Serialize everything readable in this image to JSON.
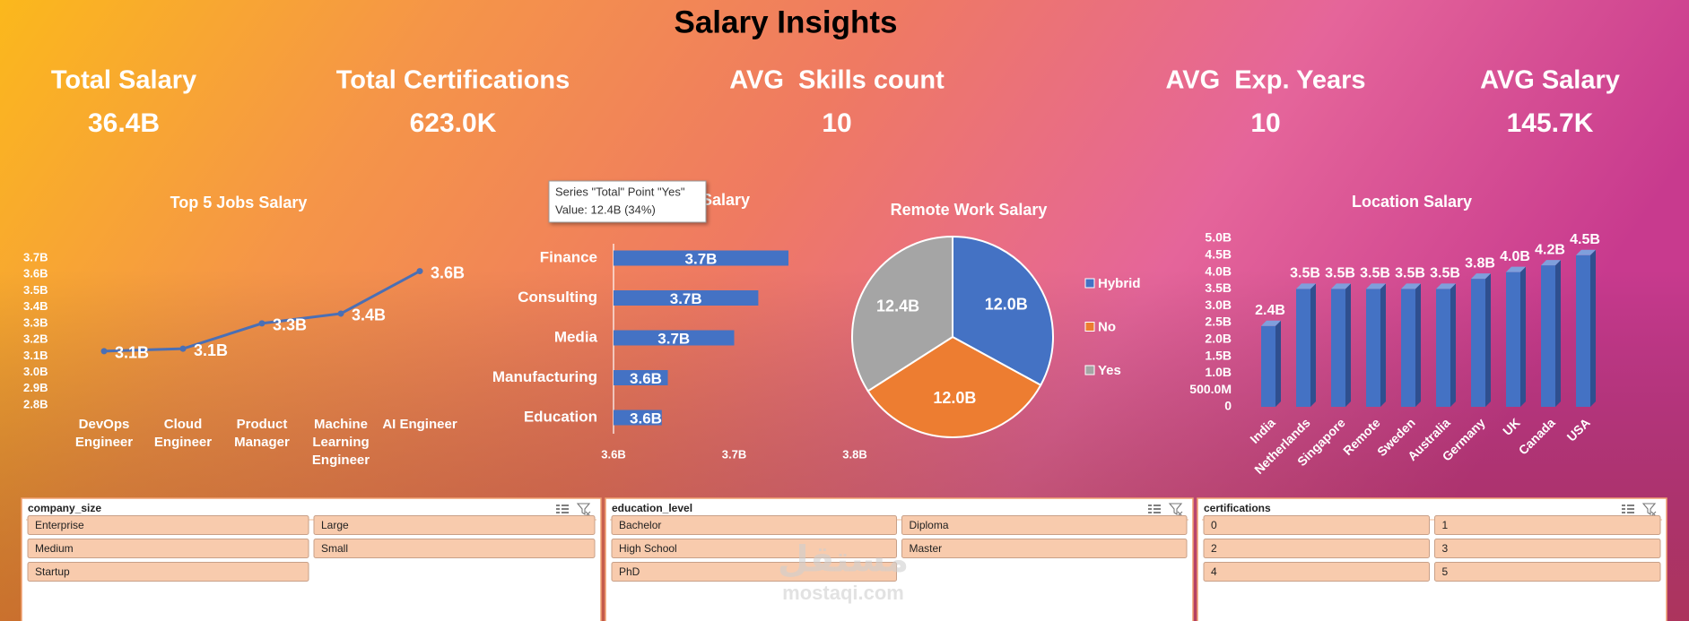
{
  "title": "Salary Insights",
  "kpis": [
    {
      "label": "Total Salary",
      "value": "36.4B"
    },
    {
      "label": "Total Certifications",
      "value": "623.0K"
    },
    {
      "label": "AVG  Skills count",
      "value": "10"
    },
    {
      "label": "AVG  Exp. Years",
      "value": "10"
    },
    {
      "label": "AVG Salary",
      "value": "145.7K"
    }
  ],
  "chart_data": [
    {
      "type": "line",
      "title": "Top 5 Jobs Salary",
      "categories": [
        "DevOps Engineer",
        "Cloud Engineer",
        "Product Manager",
        "Machine Learning Engineer",
        "AI Engineer"
      ],
      "values": [
        3130000000,
        3145000000,
        3300000000,
        3360000000,
        3620000000
      ],
      "value_labels": [
        "3.1B",
        "3.1B",
        "3.3B",
        "3.4B",
        "3.6B"
      ],
      "color": "#4a6fb5",
      "ylim": [
        2800000000,
        3700000000
      ],
      "yticks": [
        {
          "value": 3700000000,
          "label": "3.7B"
        },
        {
          "value": 3600000000,
          "label": "3.6B"
        },
        {
          "value": 3500000000,
          "label": "3.5B"
        },
        {
          "value": 3400000000,
          "label": "3.4B"
        },
        {
          "value": 3300000000,
          "label": "3.3B"
        },
        {
          "value": 3200000000,
          "label": "3.2B"
        },
        {
          "value": 3100000000,
          "label": "3.1B"
        },
        {
          "value": 3000000000,
          "label": "3.0B"
        },
        {
          "value": 2900000000,
          "label": "2.9B"
        },
        {
          "value": 2800000000,
          "label": "2.8B"
        }
      ]
    },
    {
      "type": "hbar",
      "title": "Industry Salary",
      "categories": [
        "Finance",
        "Consulting",
        "Media",
        "Manufacturing",
        "Education"
      ],
      "values": [
        3745000000,
        3720000000,
        3700000000,
        3645000000,
        3640000000
      ],
      "value_labels": [
        "3.7B",
        "3.7B",
        "3.7B",
        "3.6B",
        "3.6B"
      ],
      "color": "#4472c4",
      "xlim": [
        3600000000,
        3800000000
      ],
      "xticks": [
        {
          "value": 3600000000,
          "label": "3.6B"
        },
        {
          "value": 3700000000,
          "label": "3.7B"
        },
        {
          "value": 3800000000,
          "label": "3.8B"
        }
      ]
    },
    {
      "type": "pie",
      "title": "Remote Work Salary",
      "categories": [
        "Hybrid",
        "No",
        "Yes"
      ],
      "values": [
        12000000000,
        12000000000,
        12400000000
      ],
      "value_labels": [
        "12.0B",
        "12.0B",
        "12.4B"
      ],
      "colors": [
        "#4472c4",
        "#ed7d31",
        "#a5a5a5"
      ]
    },
    {
      "type": "column3d",
      "title": "Location Salary",
      "categories": [
        "India",
        "Netherlands",
        "Singapore",
        "Remote",
        "Sweden",
        "Australia",
        "Germany",
        "UK",
        "Canada",
        "USA"
      ],
      "values": [
        2400000000,
        3500000000,
        3500000000,
        3500000000,
        3500000000,
        3500000000,
        3800000000,
        4000000000,
        4200000000,
        4500000000
      ],
      "value_labels": [
        "2.4B",
        "3.5B",
        "3.5B",
        "3.5B",
        "3.5B",
        "3.5B",
        "3.8B",
        "4.0B",
        "4.2B",
        "4.5B"
      ],
      "color": "#4472c4",
      "ylim": [
        0,
        5000000000
      ],
      "yticks": [
        0,
        {
          "value": 500000000,
          "label": "500.0M"
        },
        {
          "value": 1000000000,
          "label": "1.0B"
        },
        {
          "value": 1500000000,
          "label": "1.5B"
        },
        {
          "value": 2000000000,
          "label": "2.0B"
        },
        {
          "value": 2500000000,
          "label": "2.5B"
        },
        {
          "value": 3000000000,
          "label": "3.0B"
        },
        {
          "value": 3500000000,
          "label": "3.5B"
        },
        {
          "value": 4000000000,
          "label": "4.0B"
        },
        {
          "value": 4500000000,
          "label": "4.5B"
        },
        {
          "value": 5000000000,
          "label": "5.0B"
        }
      ]
    }
  ],
  "tooltip": {
    "line1": "Series \"Total\" Point \"Yes\"",
    "line2": "Value: 12.4B (34%)"
  },
  "slicers": [
    {
      "name": "company_size",
      "items": [
        "Enterprise",
        "Large",
        "Medium",
        "Small",
        "Startup"
      ]
    },
    {
      "name": "education_level",
      "items": [
        "Bachelor",
        "Diploma",
        "High School",
        "Master",
        "PhD"
      ]
    },
    {
      "name": "certifications",
      "items": [
        "0",
        "1",
        "2",
        "3",
        "4",
        "5"
      ]
    }
  ],
  "watermark": {
    "arabic": "مستقل",
    "latin": "mostaqi.com"
  }
}
